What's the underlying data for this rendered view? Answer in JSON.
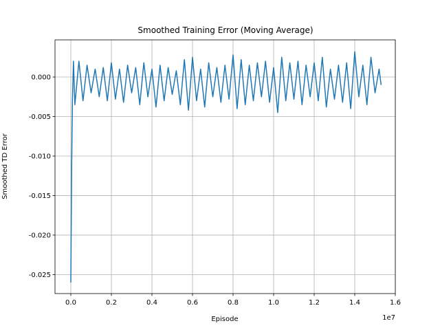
{
  "chart_data": {
    "type": "line",
    "title": "Smoothed Training Error (Moving Average)",
    "xlabel": "Episode",
    "ylabel": "Smoothed TD Error",
    "x_offset_label": "1e7",
    "grid": true,
    "xlim": [
      -780000,
      16000000
    ],
    "ylim": [
      -0.0274,
      0.0047
    ],
    "xticks": [
      {
        "value": 0,
        "label": "0.0"
      },
      {
        "value": 2000000,
        "label": "0.2"
      },
      {
        "value": 4000000,
        "label": "0.4"
      },
      {
        "value": 6000000,
        "label": "0.6"
      },
      {
        "value": 8000000,
        "label": "0.8"
      },
      {
        "value": 10000000,
        "label": "1.0"
      },
      {
        "value": 12000000,
        "label": "1.2"
      },
      {
        "value": 14000000,
        "label": "1.4"
      },
      {
        "value": 16000000,
        "label": "1.6"
      }
    ],
    "yticks": [
      {
        "value": 0,
        "label": "0.000"
      },
      -0.005,
      {
        "value": -0.01,
        "label": "-0.010"
      },
      -0.015,
      {
        "value": -0.02,
        "label": "-0.020"
      },
      -0.025
    ],
    "x": [
      0,
      20000,
      40000,
      60000,
      80000,
      100000,
      130000,
      200000,
      400000,
      600000,
      800000,
      1000000,
      1200000,
      1400000,
      1600000,
      1800000,
      2000000,
      2200000,
      2400000,
      2600000,
      2800000,
      3000000,
      3200000,
      3400000,
      3600000,
      3800000,
      4000000,
      4200000,
      4400000,
      4600000,
      4800000,
      5000000,
      5200000,
      5400000,
      5600000,
      5800000,
      6000000,
      6200000,
      6400000,
      6600000,
      6800000,
      7000000,
      7200000,
      7400000,
      7600000,
      7800000,
      8000000,
      8200000,
      8400000,
      8600000,
      8800000,
      9000000,
      9200000,
      9400000,
      9600000,
      9800000,
      10000000,
      10200000,
      10400000,
      10600000,
      10800000,
      11000000,
      11200000,
      11400000,
      11600000,
      11800000,
      12000000,
      12200000,
      12400000,
      12600000,
      12800000,
      13000000,
      13200000,
      13400000,
      13600000,
      13800000,
      14000000,
      14200000,
      14400000,
      14600000,
      14800000,
      15000000,
      15200000,
      15300000
    ],
    "series": [
      {
        "name": "Smoothed TD Error",
        "color": "#1f77b4",
        "values": [
          -0.026,
          -0.019,
          -0.012,
          -0.007,
          -0.003,
          -0.001,
          0.002,
          -0.0035,
          0.002,
          -0.003,
          0.0015,
          -0.002,
          0.001,
          -0.0025,
          0.0012,
          -0.003,
          0.0018,
          -0.0028,
          0.001,
          -0.0032,
          0.0015,
          -0.002,
          0.0012,
          -0.0035,
          0.0018,
          -0.0025,
          0.001,
          -0.0038,
          0.0015,
          -0.003,
          0.0012,
          -0.0022,
          0.0008,
          -0.0035,
          0.0022,
          -0.0042,
          0.0025,
          -0.003,
          0.001,
          -0.0038,
          0.0018,
          -0.0025,
          0.0012,
          -0.0032,
          0.0015,
          -0.0028,
          0.0028,
          -0.004,
          0.0022,
          -0.0035,
          0.0015,
          -0.003,
          0.0018,
          -0.0025,
          0.002,
          -0.0032,
          0.0012,
          -0.0045,
          0.0025,
          -0.003,
          0.0018,
          -0.0028,
          0.002,
          -0.0035,
          0.0015,
          -0.0025,
          0.0018,
          -0.003,
          0.0025,
          -0.0038,
          0.001,
          -0.0028,
          0.0015,
          -0.0032,
          0.0018,
          -0.004,
          0.0032,
          -0.0025,
          0.0015,
          -0.0035,
          0.0025,
          -0.002,
          0.001,
          -0.001
        ]
      }
    ]
  }
}
